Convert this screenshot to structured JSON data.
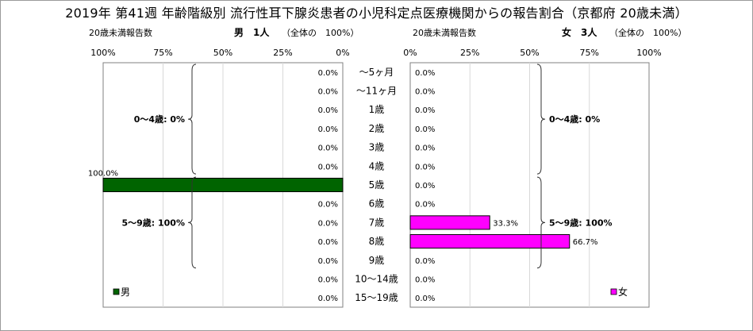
{
  "title": "2019年 第41週 年齢階級別 流行性耳下腺炎患者の小児科定点医療機関からの報告割合（京都府 20歳未満）",
  "left_header": {
    "count_label": "20歳未満報告数",
    "sex_count": "男　1人",
    "note": "（全体の　100%）"
  },
  "right_header": {
    "count_label": "20歳未満報告数",
    "sex_count": "女　3人",
    "note": "（全体の　100%）"
  },
  "chart_data": {
    "type": "bar",
    "orientation": "horizontal-butterfly",
    "categories": [
      "～5ヶ月",
      "～11ヶ月",
      "1歳",
      "2歳",
      "3歳",
      "4歳",
      "5歳",
      "6歳",
      "7歳",
      "8歳",
      "9歳",
      "10～14歳",
      "15～19歳"
    ],
    "xlim": [
      0,
      100
    ],
    "tick_labels_left": [
      "100%",
      "75%",
      "50%",
      "25%",
      "0%"
    ],
    "tick_labels_right": [
      "0%",
      "25%",
      "50%",
      "75%",
      "100%"
    ],
    "series": [
      {
        "name": "男",
        "color": "#006400",
        "values": [
          0,
          0,
          0,
          0,
          0,
          0,
          100,
          0,
          0,
          0,
          0,
          0,
          0
        ],
        "labels": [
          "0.0%",
          "0.0%",
          "0.0%",
          "0.0%",
          "0.0%",
          "0.0%",
          "100.0%",
          "0.0%",
          "0.0%",
          "0.0%",
          "0.0%",
          "0.0%",
          "0.0%"
        ]
      },
      {
        "name": "女",
        "color": "#ff00ff",
        "values": [
          0,
          0,
          0,
          0,
          0,
          0,
          0,
          0,
          33.3,
          66.7,
          0,
          0,
          0
        ],
        "labels": [
          "0.0%",
          "0.0%",
          "0.0%",
          "0.0%",
          "0.0%",
          "0.0%",
          "0.0%",
          "0.0%",
          "33.3%",
          "66.7%",
          "0.0%",
          "0.0%",
          "0.0%"
        ]
      }
    ],
    "group_annotations": {
      "left": [
        {
          "text": "0～4歳: 0%",
          "from": 0,
          "to": 5
        },
        {
          "text": "5～9歳: 100%",
          "from": 6,
          "to": 10
        }
      ],
      "right": [
        {
          "text": "0～4歳: 0%",
          "from": 0,
          "to": 5
        },
        {
          "text": "5～9歳: 100%",
          "from": 6,
          "to": 10
        }
      ]
    },
    "grid": true,
    "legend": {
      "left": "男",
      "right": "女",
      "position": "bottom-inside"
    }
  }
}
